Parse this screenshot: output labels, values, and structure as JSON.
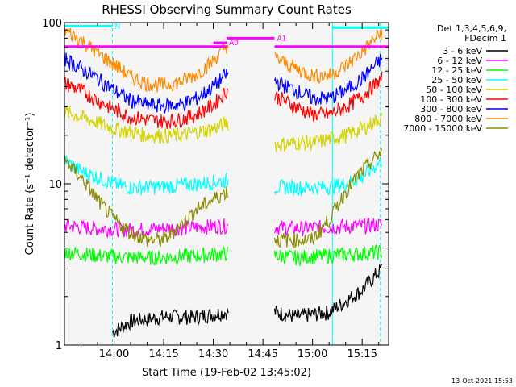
{
  "chart_data": {
    "type": "line",
    "title": "RHESSI Observing Summary Count Rates",
    "xlabel": "Start Time (19-Feb-02 13:45:02)",
    "ylabel": "Count Rate (s⁻¹ detector⁻¹)",
    "y_scale": "log",
    "ylim": [
      1,
      100
    ],
    "x_unit": "minutes since 13:45",
    "xlim": [
      0,
      98
    ],
    "x_ticks": [
      {
        "value": 15,
        "label": "14:00"
      },
      {
        "value": 30,
        "label": "14:15"
      },
      {
        "value": 45,
        "label": "14:30"
      },
      {
        "value": 60,
        "label": "14:45"
      },
      {
        "value": 75,
        "label": "15:00"
      },
      {
        "value": 90,
        "label": "15:15"
      }
    ],
    "y_ticks": [
      {
        "value": 1,
        "label": "1"
      },
      {
        "value": 10,
        "label": "10"
      },
      {
        "value": 100,
        "label": "100"
      }
    ],
    "data_gap": [
      49.5,
      63.5
    ],
    "legend": {
      "header": [
        "Det 1,3,4,5,6,9,",
        "FDecim 1"
      ],
      "position": "right"
    },
    "series": [
      {
        "name": "3 - 6 keV",
        "color": "#000000",
        "x": [
          14.5,
          20,
          30,
          40,
          49,
          64,
          70,
          80,
          90,
          96
        ],
        "y": [
          1.2,
          1.4,
          1.5,
          1.5,
          1.6,
          1.6,
          1.5,
          1.6,
          2.2,
          3.0
        ]
      },
      {
        "name": "6 - 12 keV",
        "color": "#ff00ff",
        "x": [
          0,
          10,
          20,
          30,
          40,
          49,
          64,
          70,
          80,
          90,
          96
        ],
        "y": [
          5.5,
          5.3,
          5.2,
          5.3,
          5.4,
          5.5,
          5.4,
          5.3,
          5.4,
          5.5,
          5.6
        ]
      },
      {
        "name": "12 - 25 keV",
        "color": "#00ff00",
        "x": [
          0,
          10,
          20,
          30,
          40,
          49,
          64,
          70,
          80,
          90,
          96
        ],
        "y": [
          3.8,
          3.6,
          3.5,
          3.5,
          3.6,
          3.7,
          3.6,
          3.5,
          3.6,
          3.7,
          3.8
        ]
      },
      {
        "name": "25 - 50 keV",
        "color": "#00ffff",
        "x": [
          0,
          5,
          10,
          15,
          20,
          30,
          40,
          49,
          64,
          70,
          80,
          85,
          90,
          96
        ],
        "y": [
          14,
          12,
          11,
          10,
          9.5,
          9.6,
          10,
          10.5,
          9.6,
          9.5,
          9.6,
          10,
          11,
          14
        ]
      },
      {
        "name": "50 - 100 keV",
        "color": "#d4d400",
        "x": [
          0,
          5,
          10,
          15,
          20,
          25,
          30,
          35,
          40,
          45,
          49,
          64,
          70,
          75,
          80,
          85,
          90,
          96
        ],
        "y": [
          28,
          26,
          24,
          22,
          21,
          20,
          20,
          20,
          21,
          22,
          24,
          17.5,
          18,
          18,
          19,
          20,
          22,
          26
        ]
      },
      {
        "name": "100 - 300 keV",
        "color": "#ff0000",
        "x": [
          0,
          5,
          10,
          15,
          20,
          25,
          30,
          35,
          40,
          45,
          49,
          64,
          70,
          75,
          80,
          85,
          90,
          96
        ],
        "y": [
          42,
          38,
          33,
          29,
          26,
          25,
          24.5,
          25,
          27,
          31,
          38,
          35,
          30,
          27,
          27,
          30,
          35,
          45
        ]
      },
      {
        "name": "300 - 800 keV",
        "color": "#0000ff",
        "x": [
          0,
          5,
          10,
          15,
          20,
          25,
          30,
          35,
          40,
          45,
          49,
          64,
          70,
          75,
          80,
          85,
          90,
          96
        ],
        "y": [
          60,
          52,
          45,
          38,
          33,
          31,
          30.5,
          31,
          34,
          40,
          48,
          43,
          38,
          34,
          34,
          38,
          45,
          60
        ]
      },
      {
        "name": "800 - 7000 keV",
        "color": "#ff8c00",
        "x": [
          0,
          5,
          10,
          15,
          20,
          25,
          30,
          35,
          40,
          45,
          49,
          64,
          70,
          75,
          80,
          85,
          90,
          96
        ],
        "y": [
          90,
          78,
          65,
          55,
          46,
          42,
          41,
          43,
          48,
          58,
          72,
          60,
          52,
          47,
          47,
          54,
          66,
          88
        ]
      },
      {
        "name": "7000 - 15000 keV",
        "color": "#8b8b00",
        "x": [
          0,
          5,
          10,
          15,
          20,
          25,
          30,
          35,
          40,
          45,
          49,
          64,
          70,
          75,
          80,
          85,
          90,
          96
        ],
        "y": [
          14,
          11,
          8,
          6,
          5,
          4.5,
          4.5,
          5.5,
          7,
          8,
          9,
          4.5,
          4.5,
          4.5,
          6,
          9,
          12,
          16
        ]
      }
    ],
    "annotations": [
      {
        "label": "N",
        "color": "#00ffff",
        "x": [
          0,
          14.5
        ],
        "y": 95
      },
      {
        "label": "",
        "color": "#00ffff",
        "x": [
          81,
          98
        ],
        "y": 93
      },
      {
        "label": "A0",
        "color": "#ff00ff",
        "x": [
          45,
          49
        ],
        "y": 75
      },
      {
        "label": "A1",
        "color": "#ff00ff",
        "x": [
          49,
          63.5
        ],
        "y": 80
      },
      {
        "label": "",
        "color": "#ff00ff",
        "x": [
          0,
          49
        ],
        "y": 71
      },
      {
        "label": "",
        "color": "#ff00ff",
        "x": [
          63.5,
          98
        ],
        "y": 71
      }
    ],
    "vertical_markers": [
      {
        "x": 0,
        "style": "solid",
        "color": "#00ffff"
      },
      {
        "x": 14.5,
        "style": "dashed",
        "color": "#00ffff"
      },
      {
        "x": 81,
        "style": "solid",
        "color": "#00ffff"
      },
      {
        "x": 95.5,
        "style": "dashed",
        "color": "#00ffff"
      }
    ],
    "footer": "13-Oct-2021 15:53"
  }
}
